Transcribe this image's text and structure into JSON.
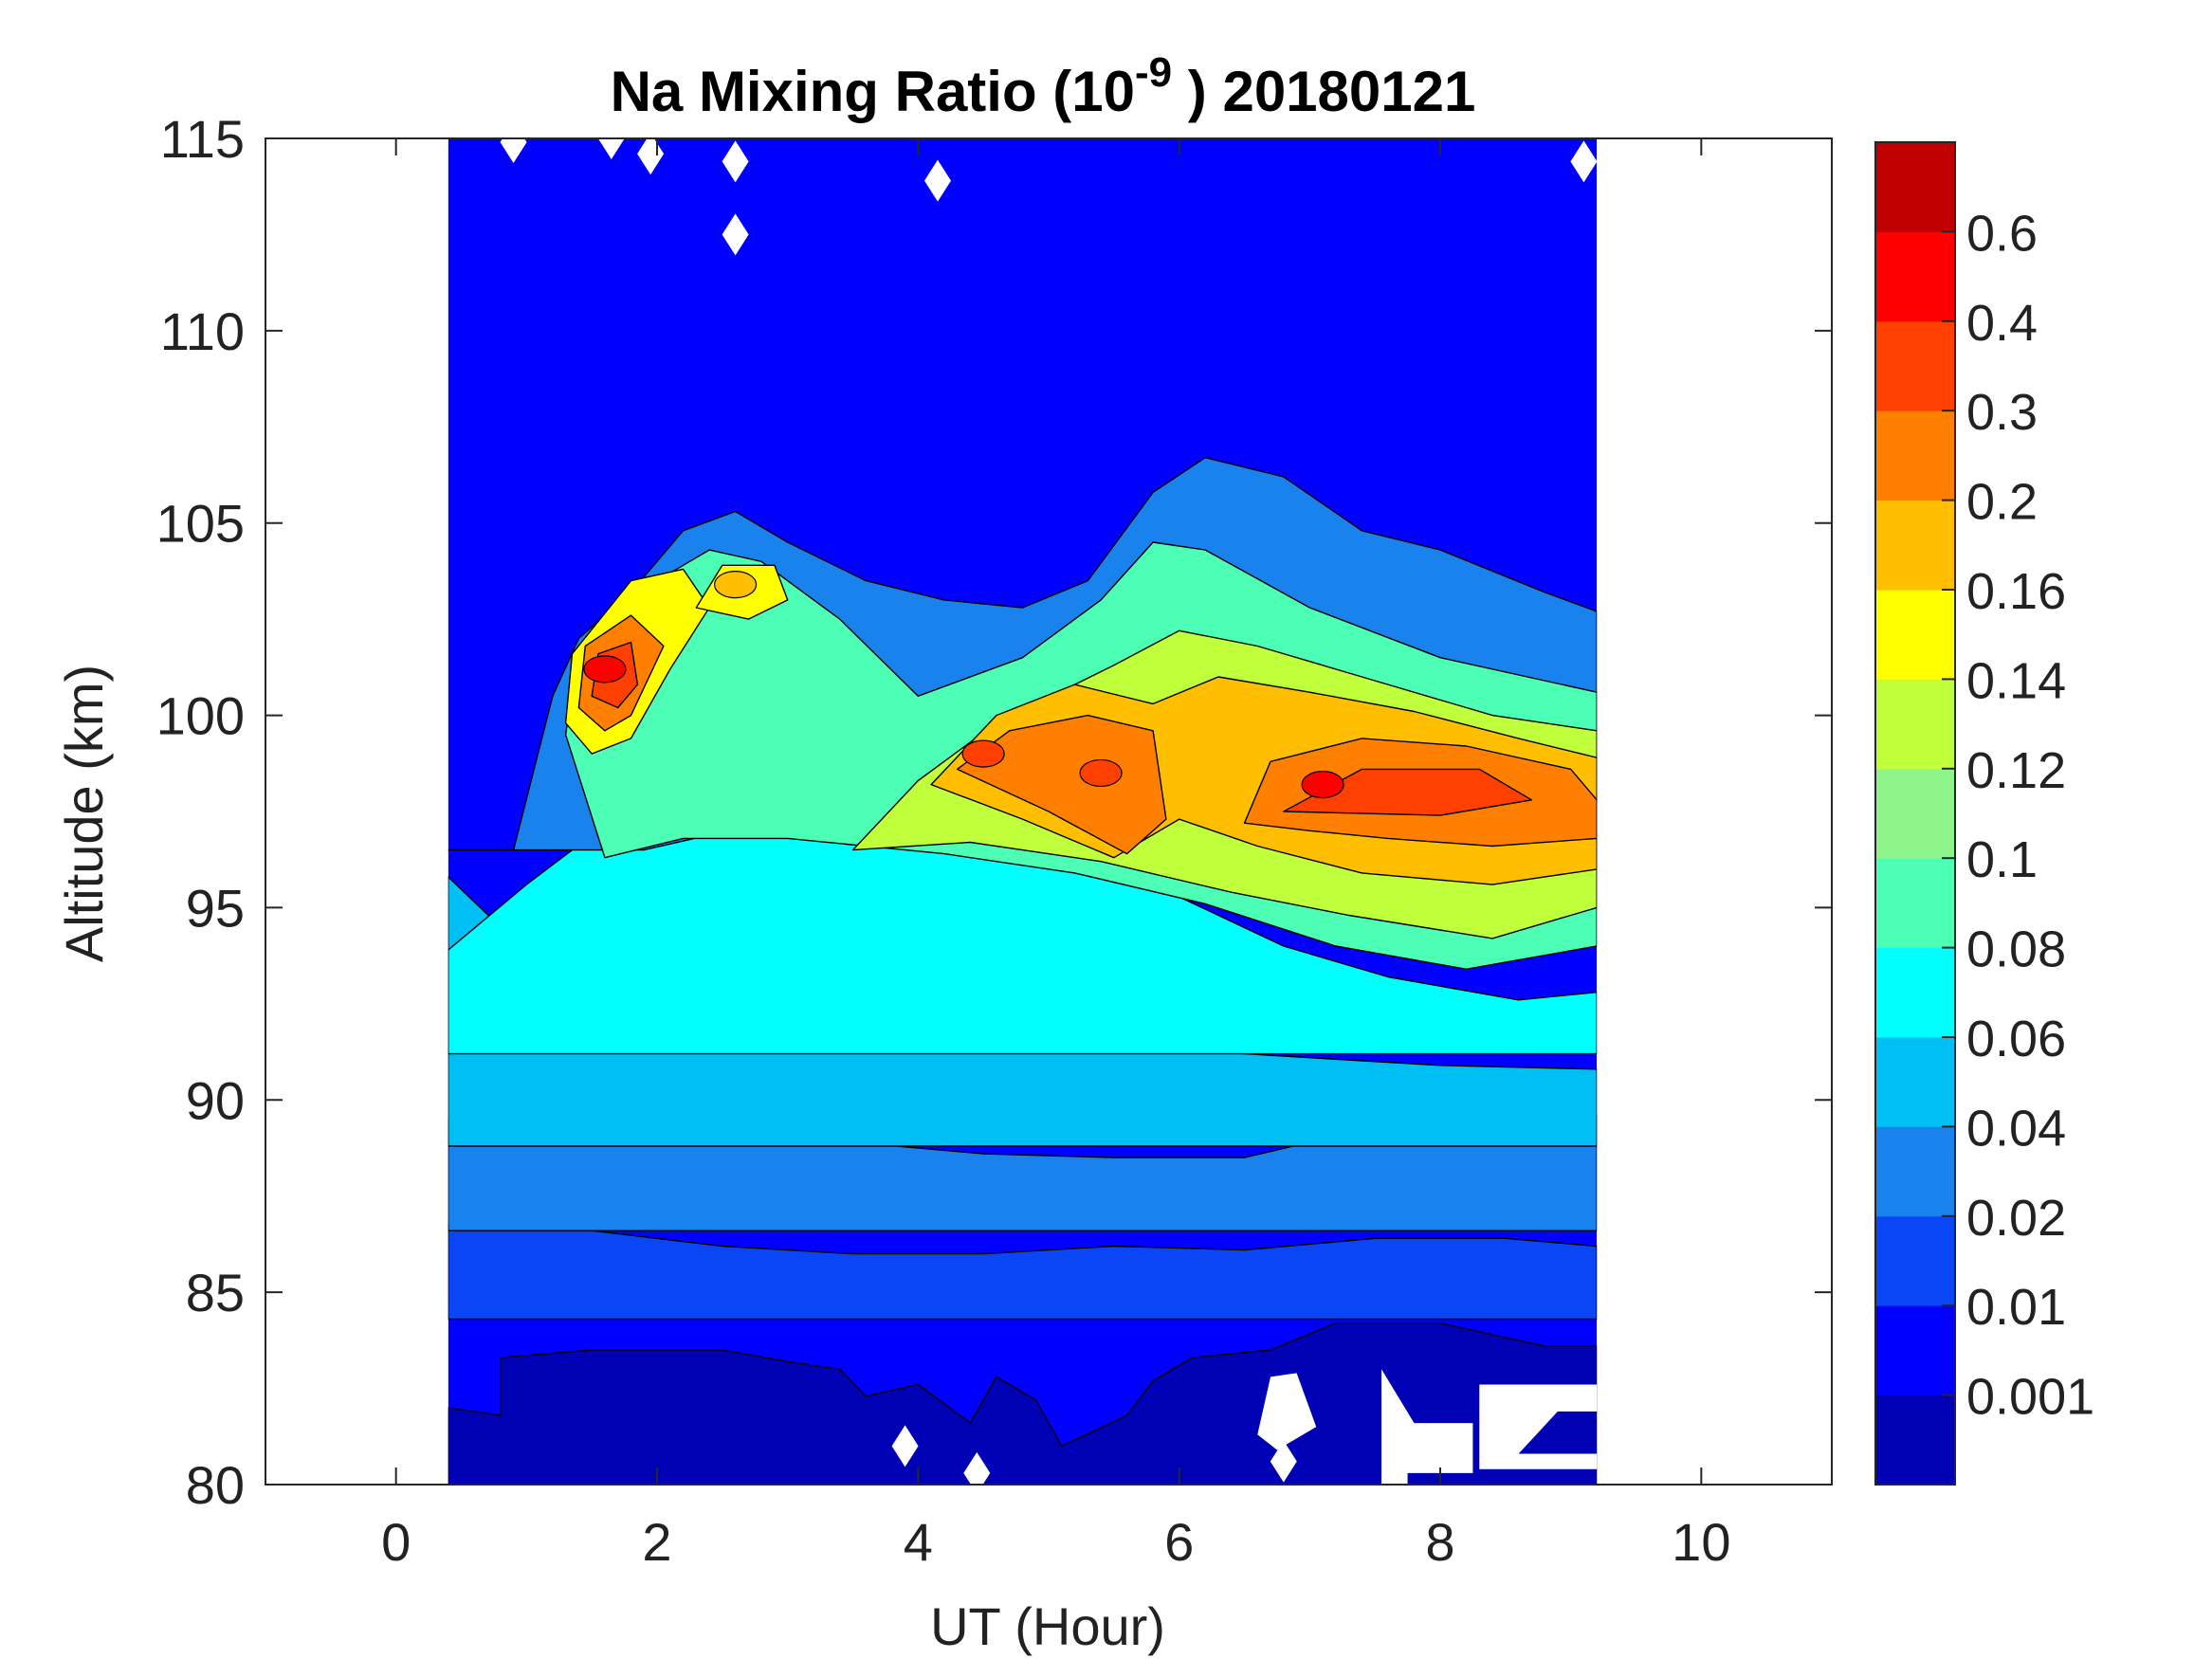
{
  "chart_data": {
    "type": "contourf",
    "title": {
      "prefix": "Na Mixing Ratio (10",
      "exponent": "-9",
      "suffix": " ) 20180121"
    },
    "xlabel": "UT (Hour)",
    "ylabel": "Altitude (km)",
    "xlim": [
      -1,
      11
    ],
    "ylim": [
      80,
      115
    ],
    "xticks": [
      0,
      2,
      4,
      6,
      8,
      10
    ],
    "yticks": [
      80,
      85,
      90,
      95,
      100,
      105,
      110,
      115
    ],
    "data_extent": {
      "x": [
        0.4,
        9.2
      ],
      "y": [
        80,
        115
      ]
    },
    "colorbar": {
      "levels": [
        "0.001",
        "0.01",
        "0.02",
        "0.04",
        "0.06",
        "0.08",
        "0.1",
        "0.12",
        "0.14",
        "0.16",
        "0.2",
        "0.3",
        "0.4",
        "0.6"
      ],
      "colors": [
        "#0000b4",
        "#0000ff",
        "#0a46f5",
        "#1a82ec",
        "#00bff5",
        "#00ffff",
        "#4dffb4",
        "#8ef58c",
        "#c0ff3c",
        "#ffff00",
        "#ffbf00",
        "#ff8000",
        "#ff4000",
        "#ff0000",
        "#c00000"
      ]
    },
    "features": [
      {
        "name": "layer-peak-early",
        "ut": 1.6,
        "alt_km": 101.2,
        "value": 0.4
      },
      {
        "name": "layer-peak-secondary",
        "ut": 2.6,
        "alt_km": 103.4,
        "value": 0.16
      },
      {
        "name": "layer-peak-late",
        "ut": 7.1,
        "alt_km": 98.2,
        "value": 0.4
      },
      {
        "name": "layer-peak-mid",
        "ut": 5.4,
        "alt_km": 98.5,
        "value": 0.3
      },
      {
        "name": "layer-peak-4h",
        "ut": 4.5,
        "alt_km": 99.0,
        "value": 0.3
      }
    ]
  }
}
